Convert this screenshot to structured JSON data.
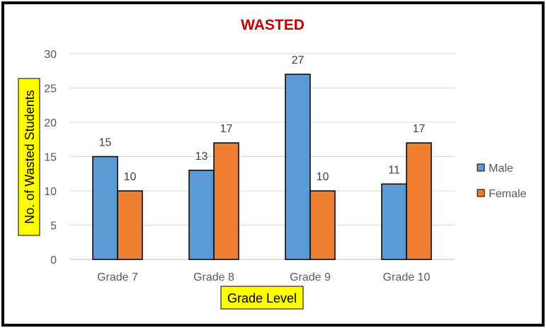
{
  "chart_data": {
    "type": "bar",
    "title": "WASTED",
    "xlabel": "Grade Level",
    "ylabel": "No. of Wasted Students",
    "categories": [
      "Grade 7",
      "Grade 8",
      "Grade 9",
      "Grade 10"
    ],
    "series": [
      {
        "name": "Male",
        "values": [
          15,
          13,
          27,
          11
        ],
        "color": "#5B9BD5"
      },
      {
        "name": "Female",
        "values": [
          10,
          17,
          10,
          17
        ],
        "color": "#ED7D31"
      }
    ],
    "ylim": [
      0,
      30
    ],
    "yticks": [
      0,
      5,
      10,
      15,
      20,
      25,
      30
    ],
    "grid": true,
    "legend_position": "right",
    "data_labels": true,
    "colors": {
      "title": "#C00000",
      "axis_title_highlight": "#FFFF00",
      "gridline": "#D9D9D9",
      "frame": "#000000"
    }
  }
}
